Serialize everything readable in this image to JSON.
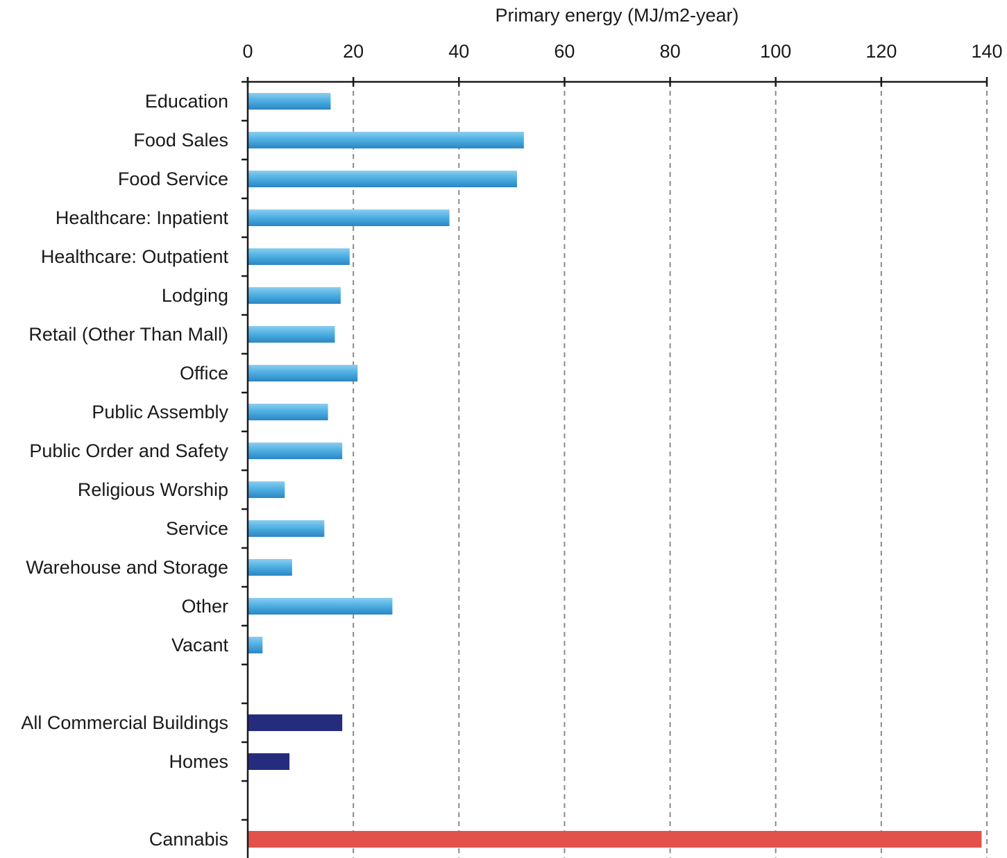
{
  "chart_data": {
    "type": "bar",
    "orientation": "horizontal",
    "xlabel": "Primary energy (MJ/m2-year)",
    "xlim": [
      0,
      140
    ],
    "xticks": [
      0,
      20,
      40,
      60,
      80,
      100,
      120,
      140
    ],
    "x_axis_position": "top",
    "grid": "vertical dashed",
    "categories": [
      "Education",
      "Food Sales",
      "Food Service",
      "Healthcare:  Inpatient",
      "Healthcare:  Outpatient",
      "Lodging",
      "Retail (Other Than Mall)",
      "Office",
      "Public Assembly",
      "Public Order and Safety",
      "Religious Worship",
      "Service",
      "Warehouse and Storage",
      "Other",
      "Vacant",
      "All Commercial Buildings",
      "Homes",
      "Cannabis"
    ],
    "values": [
      15.7,
      52.3,
      51.0,
      38.2,
      19.3,
      17.6,
      16.5,
      20.8,
      15.2,
      17.9,
      7.0,
      14.5,
      8.4,
      27.4,
      2.8,
      17.9,
      7.9,
      139
    ]
  },
  "colors": {
    "commercial_bar": "#3a9ed6",
    "commercial_bar_light": "#8ccdf0",
    "aggregate_bar": "#252c7e",
    "cannabis_bar": "#e2524b"
  }
}
